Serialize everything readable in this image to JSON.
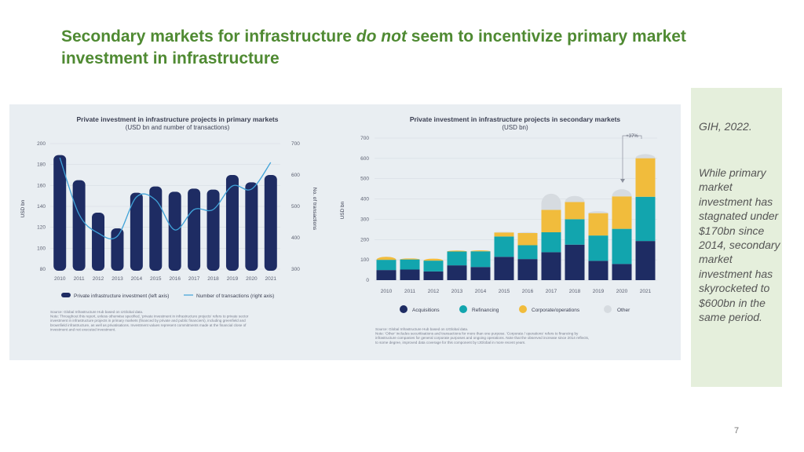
{
  "slide": {
    "title_before": "Secondary markets for infrastructure ",
    "title_emph": "do not",
    "title_after": " seem to incentivize primary market investment in infrastructure",
    "page_number": "7"
  },
  "side_note": {
    "citation": "GIH, 2022.",
    "body": "While primary market investment has stagnated under $170bn since 2014, secondary market investment has skyrocketed to $600bn in the same period."
  },
  "colors": {
    "title_green": "#4f8a32",
    "navy": "#1e2c63",
    "teal": "#12a5ae",
    "gold": "#f1bc3c",
    "grey": "#d6dbe0",
    "line": "#3fa2d8"
  },
  "chart_data": [
    {
      "type": "bar",
      "title": "Private investment in infrastructure projects in primary markets",
      "subtitle": "(USD bn and number of transactions)",
      "ylabel": "USD bn",
      "y2label": "No. of transactions",
      "categories": [
        "2010",
        "2011",
        "2012",
        "2013",
        "2014",
        "2015",
        "2016",
        "2017",
        "2018",
        "2019",
        "2020",
        "2021"
      ],
      "ylim": [
        80,
        200
      ],
      "yticks": [
        "80",
        "100",
        "120",
        "140",
        "160",
        "180",
        "200"
      ],
      "y2lim": [
        300,
        700
      ],
      "y2ticks": [
        "300",
        "400",
        "500",
        "600",
        "700"
      ],
      "series": [
        {
          "name": "Private infrastructure investment (left axis)",
          "axis": "left",
          "kind": "bar",
          "values": [
            189,
            165,
            134,
            119,
            153,
            159,
            154,
            157,
            156,
            170,
            163,
            170
          ]
        },
        {
          "name": "Number of transactions (right axis)",
          "axis": "right",
          "kind": "line",
          "values": [
            655,
            475,
            415,
            405,
            530,
            520,
            425,
            490,
            490,
            565,
            555,
            640
          ]
        }
      ],
      "source_lines": [
        "Source: Global Infrastructure Hub based on IJGlobal data.",
        "Note: Throughout this report, unless otherwise specified, 'private investment in infrastructure projects' refers to private sector",
        "investment in infrastructure projects in primary markets (financed by private and public financiers), including greenfield and",
        "brownfield infrastructure, as well as privatisations. Investment values represent commitments made at the financial close of",
        "investment and not executed investment."
      ]
    },
    {
      "type": "bar",
      "stacked": true,
      "title": "Private investment in infrastructure projects in secondary markets",
      "subtitle": "(USD bn)",
      "ylabel": "USD bn",
      "categories": [
        "2010",
        "2011",
        "2012",
        "2013",
        "2014",
        "2015",
        "2016",
        "2017",
        "2018",
        "2019",
        "2020",
        "2021"
      ],
      "ylim": [
        0,
        700
      ],
      "yticks": [
        "0",
        "100",
        "200",
        "300",
        "400",
        "500",
        "600",
        "700"
      ],
      "series": [
        {
          "name": "Acquisitions",
          "values": [
            50,
            52,
            43,
            73,
            65,
            115,
            104,
            138,
            175,
            95,
            80,
            193
          ]
        },
        {
          "name": "Refinancing",
          "values": [
            50,
            50,
            53,
            68,
            77,
            100,
            68,
            98,
            125,
            125,
            173,
            218
          ]
        },
        {
          "name": "Corporate/operations",
          "values": [
            15,
            5,
            10,
            5,
            5,
            20,
            60,
            110,
            85,
            110,
            160,
            190
          ]
        },
        {
          "name": "Other",
          "values": [
            0,
            0,
            0,
            0,
            0,
            3,
            5,
            80,
            30,
            10,
            35,
            20
          ]
        }
      ],
      "annotation": "+37%",
      "source_lines": [
        "Source: Global Infrastructure Hub based on IJGlobal data.",
        "Note: 'Other' includes securitisations and transactions for more than one purpose. 'Corporate / operations' refers to financing by",
        "infrastructure companies for general corporate purposes and ongoing operations. Note that the observed increase since 2014 reflects,",
        "to some degree, improved data coverage for this component by IJGlobal in more recent years."
      ]
    }
  ]
}
